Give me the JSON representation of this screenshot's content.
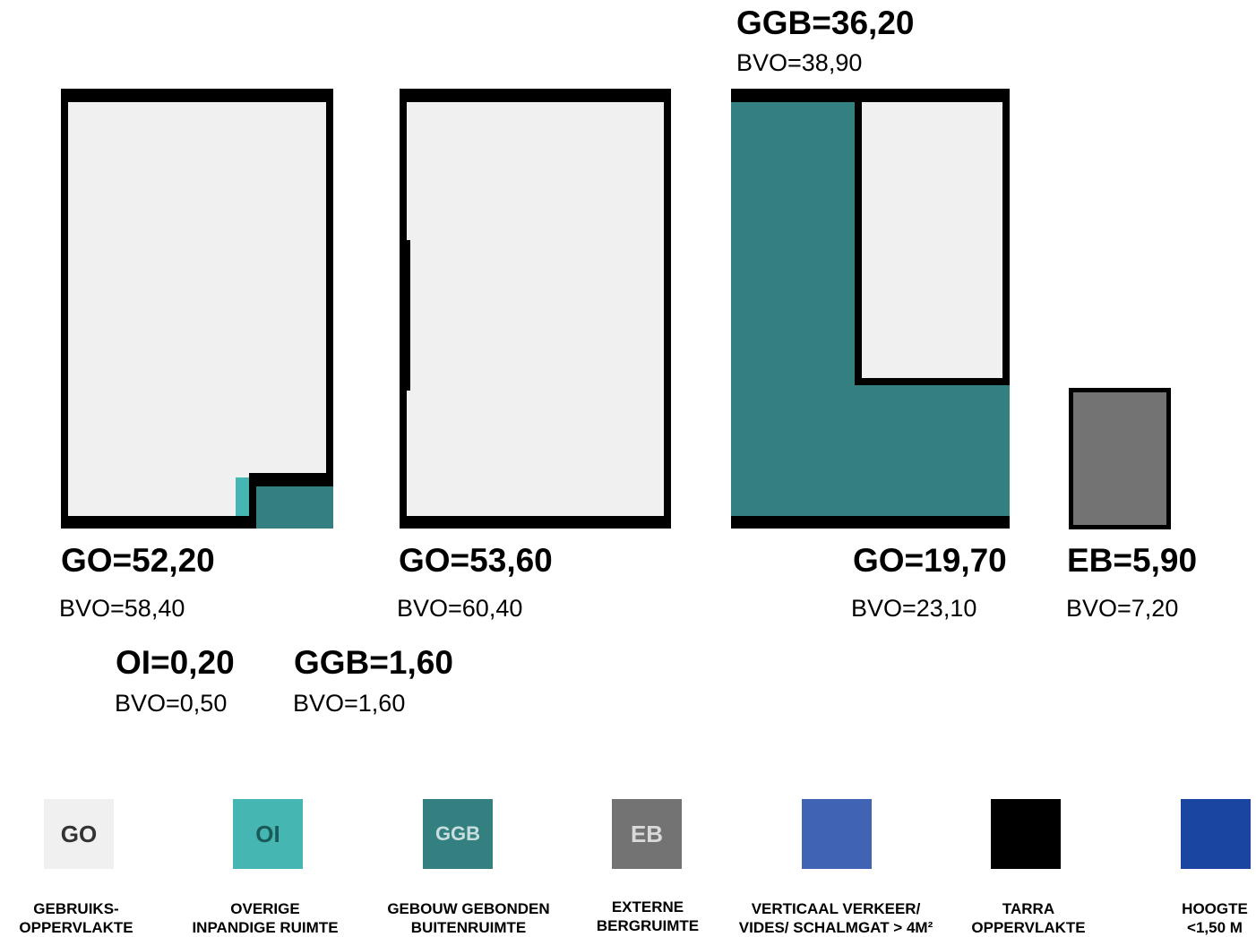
{
  "colors": {
    "go": "#f0f0f0",
    "oi": "#45b6b1",
    "ggb": "#348080",
    "eb": "#737373",
    "verticaal": "#4064b3",
    "tarra": "#000000",
    "hoogte": "#1a45a0"
  },
  "rooms": {
    "room1": {
      "title": "GO=52,20",
      "bvo": "BVO=58,40"
    },
    "room2": {
      "title": "GO=53,60",
      "bvo": "BVO=60,40"
    },
    "room3_top": {
      "title": "GGB=36,20",
      "bvo": "BVO=38,90"
    },
    "room3_bottom": {
      "title": "GO=19,70",
      "bvo": "BVO=23,10"
    },
    "room4": {
      "title": "EB=5,90",
      "bvo": "BVO=7,20"
    },
    "oi": {
      "title": "OI=0,20",
      "bvo": "BVO=0,50"
    },
    "ggb_small": {
      "title": "GGB=1,60",
      "bvo": "BVO=1,60"
    }
  },
  "legend": [
    {
      "code": "GO",
      "line1": "GEBRUIKS-",
      "line2": "OPPERVLAKTE"
    },
    {
      "code": "OI",
      "line1": "OVERIGE",
      "line2": "INPANDIGE RUIMTE"
    },
    {
      "code": "GGB",
      "line1": "GEBOUW GEBONDEN",
      "line2": "BUITENRUIMTE"
    },
    {
      "code": "EB",
      "line1": "EXTERNE",
      "line2": "BERGRUIMTE"
    },
    {
      "code": "",
      "line1": "VERTICAAL VERKEER/",
      "line2": "VIDES/ SCHALMGAT > 4M²"
    },
    {
      "code": "",
      "line1": "TARRA",
      "line2": "OPPERVLAKTE"
    },
    {
      "code": "",
      "line1": "HOOGTE",
      "line2": "<1,50 M"
    }
  ]
}
